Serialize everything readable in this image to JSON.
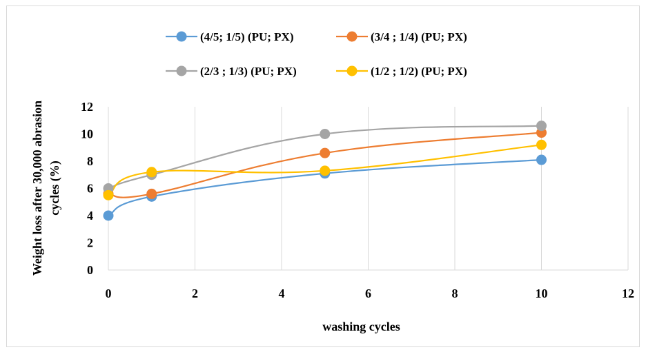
{
  "chart_data": {
    "type": "line",
    "title": "",
    "xlabel": "washing cycles",
    "ylabel_line1": "Weight loss after 30,000 abrasion",
    "ylabel_line2": "cycles (%)",
    "xlim": [
      0,
      12
    ],
    "ylim": [
      0,
      12
    ],
    "x_ticks": [
      "0",
      "2",
      "4",
      "6",
      "8",
      "10",
      "12"
    ],
    "y_ticks": [
      "0",
      "2",
      "4",
      "6",
      "8",
      "10",
      "12"
    ],
    "grid": "vertical",
    "legend_position": "top",
    "smooth": true,
    "series": [
      {
        "name": "(4/5; 1/5) (PU; PX)",
        "color": "#5b9bd5",
        "x": [
          0,
          1,
          5,
          10
        ],
        "y": [
          4.0,
          5.4,
          7.1,
          8.1
        ]
      },
      {
        "name": "(3/4 ; 1/4) (PU; PX)",
        "color": "#ed7d31",
        "x": [
          0,
          1,
          5,
          10
        ],
        "y": [
          5.6,
          5.6,
          8.6,
          10.1
        ]
      },
      {
        "name": "(2/3 ; 1/3) (PU; PX)",
        "color": "#a5a5a5",
        "x": [
          0,
          1,
          5,
          10
        ],
        "y": [
          6.0,
          7.0,
          10.0,
          10.6
        ]
      },
      {
        "name": "(1/2 ; 1/2) (PU; PX)",
        "color": "#ffc000",
        "x": [
          0,
          1,
          5,
          10
        ],
        "y": [
          5.5,
          7.2,
          7.3,
          9.2
        ]
      }
    ]
  }
}
